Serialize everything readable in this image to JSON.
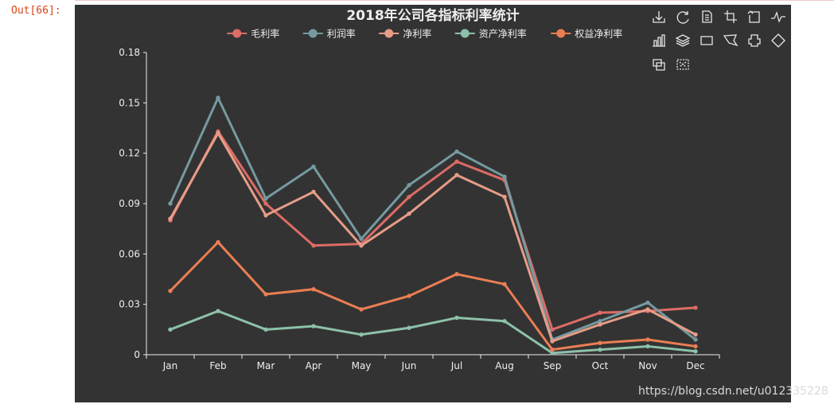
{
  "notebook": {
    "prompt": "Out[66]:"
  },
  "watermark": "https://blog.csdn.net/u012335228",
  "toolbox": {
    "icons": [
      "download-icon",
      "refresh-icon",
      "data-view-icon",
      "zoom-icon",
      "zoom-reset-icon",
      "line-chart-icon",
      "bar-chart-icon",
      "stack-icon",
      "rect-select-icon",
      "polygon-select-icon",
      "keep-select-icon",
      "clear-select-icon",
      "brush-icon",
      "clear-brush-icon"
    ]
  },
  "chart_data": {
    "type": "line",
    "title": "2018年公司各指标利率统计",
    "categories": [
      "Jan",
      "Feb",
      "Mar",
      "Apr",
      "May",
      "Jun",
      "Jul",
      "Aug",
      "Sep",
      "Oct",
      "Nov",
      "Dec"
    ],
    "ylim": [
      0,
      0.18
    ],
    "yticks": [
      "0",
      "0.03",
      "0.06",
      "0.09",
      "0.12",
      "0.15",
      "0.18"
    ],
    "legend_position": "top-center",
    "series": [
      {
        "name": "毛利率",
        "color": "#dd6b66",
        "values": [
          0.08,
          0.133,
          0.09,
          0.065,
          0.066,
          0.094,
          0.115,
          0.104,
          0.015,
          0.025,
          0.026,
          0.028
        ]
      },
      {
        "name": "利润率",
        "color": "#759aa0",
        "values": [
          0.09,
          0.153,
          0.093,
          0.112,
          0.069,
          0.101,
          0.121,
          0.106,
          0.009,
          0.02,
          0.031,
          0.009
        ]
      },
      {
        "name": "净利率",
        "color": "#e69d87",
        "values": [
          0.081,
          0.132,
          0.083,
          0.097,
          0.065,
          0.084,
          0.107,
          0.094,
          0.008,
          0.018,
          0.027,
          0.012
        ]
      },
      {
        "name": "资产净利率",
        "color": "#8dc1a9",
        "values": [
          0.015,
          0.026,
          0.015,
          0.017,
          0.012,
          0.016,
          0.022,
          0.02,
          0.001,
          0.003,
          0.005,
          0.002
        ]
      },
      {
        "name": "权益净利率",
        "color": "#ea7e53",
        "values": [
          0.038,
          0.067,
          0.036,
          0.039,
          0.027,
          0.035,
          0.048,
          0.042,
          0.003,
          0.007,
          0.009,
          0.005
        ]
      }
    ]
  }
}
